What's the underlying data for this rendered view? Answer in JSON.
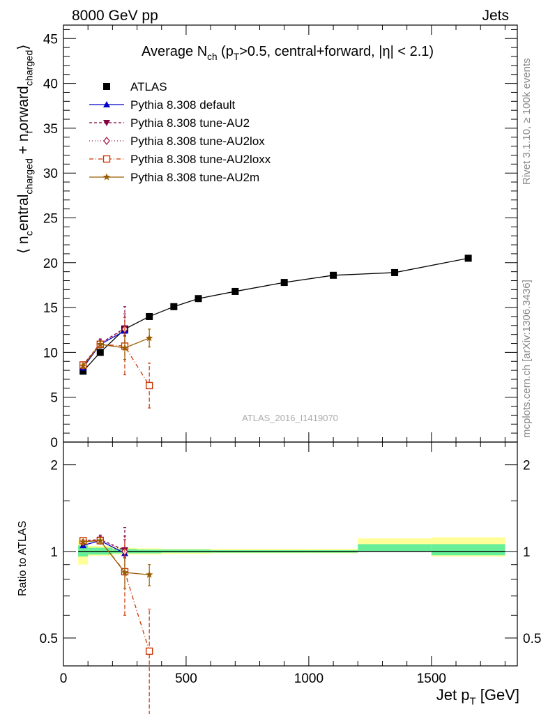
{
  "header": {
    "left": "8000 GeV pp",
    "right": "Jets"
  },
  "side_labels": {
    "rivet": "Rivet 3.1.10, ≥ 100k events",
    "mcplots": "mcplots.cern.ch [arXiv:1306.3436]"
  },
  "chart_data": [
    {
      "type": "scatter",
      "title_parts": [
        "Average N",
        "ch",
        " (p",
        "T",
        ">0.5, central+forward, |η| < 2.1)"
      ],
      "watermark": "ATLAS_2016_I1419070",
      "ylabel_parts": [
        "⟨ n",
        "c",
        "entral",
        "charged",
        " + n",
        "f",
        "orward",
        "charged",
        "⟩"
      ],
      "xlim": [
        0,
        1850
      ],
      "ylim": [
        0,
        46.5
      ],
      "yticks": [
        0,
        5,
        10,
        15,
        20,
        25,
        30,
        35,
        40,
        45
      ],
      "legend_position": "top-left",
      "series": [
        {
          "name": "ATLAS",
          "color": "#000000",
          "marker": "square",
          "x": [
            80,
            150,
            250,
            350,
            450,
            550,
            700,
            900,
            1100,
            1350,
            1650
          ],
          "y": [
            7.9,
            10.0,
            12.6,
            14.0,
            15.1,
            16.0,
            16.8,
            17.8,
            18.6,
            18.9,
            20.5
          ]
        },
        {
          "name": "Pythia 8.308 default",
          "color": "#0000cc",
          "marker": "triangle-up",
          "dash": "",
          "x": [
            80,
            150,
            250
          ],
          "y": [
            8.3,
            10.9,
            12.4
          ],
          "err_lo": [
            0.3,
            0.3,
            0.5
          ],
          "err_hi": [
            0.3,
            0.3,
            0.5
          ]
        },
        {
          "name": "Pythia 8.308 tune-AU2",
          "color": "#800040",
          "marker": "triangle-down",
          "dash": "4,3",
          "x": [
            80,
            150,
            250
          ],
          "y": [
            8.6,
            11.0,
            12.7
          ],
          "err_lo": [
            0.3,
            0.5,
            2.1
          ],
          "err_hi": [
            0.3,
            0.5,
            2.4
          ]
        },
        {
          "name": "Pythia 8.308 tune-AU2lox",
          "color": "#a01040",
          "marker": "diamond-open",
          "dash": "1,3",
          "x": [
            80,
            150,
            250
          ],
          "y": [
            8.5,
            11.0,
            12.6
          ],
          "err_lo": [
            0.3,
            0.4,
            1.7
          ],
          "err_hi": [
            0.3,
            0.4,
            1.7
          ]
        },
        {
          "name": "Pythia 8.308 tune-AU2loxx",
          "color": "#cc3300",
          "marker": "square-open",
          "dash": "6,3,1,3",
          "x": [
            80,
            150,
            250,
            350
          ],
          "y": [
            8.6,
            10.9,
            10.7,
            6.3
          ],
          "err_lo": [
            0.3,
            0.3,
            3.2,
            2.5
          ],
          "err_hi": [
            0.3,
            0.3,
            3.2,
            2.5
          ]
        },
        {
          "name": "Pythia 8.308 tune-AU2m",
          "color": "#995c00",
          "marker": "star",
          "dash": "",
          "x": [
            80,
            150,
            250,
            350
          ],
          "y": [
            8.5,
            10.9,
            10.5,
            11.6
          ],
          "err_lo": [
            0.3,
            0.4,
            1.3,
            1.0
          ],
          "err_hi": [
            0.3,
            0.4,
            1.3,
            1.0
          ]
        }
      ]
    },
    {
      "type": "scatter",
      "ylabel": "Ratio to ATLAS",
      "xlabel_parts": [
        "Jet p",
        "T",
        " [GeV]"
      ],
      "xlim": [
        0,
        1850
      ],
      "xticks": [
        0,
        500,
        1000,
        1500
      ],
      "ylim": [
        0.4,
        2.4
      ],
      "yscale": "log",
      "yticks": [
        0.5,
        1,
        2
      ],
      "reference": 1,
      "reference_color": "#000000",
      "bands": {
        "inner_color": "#66ee99",
        "outer_color": "#ffff99",
        "bins": [
          {
            "x": [
              60,
              100
            ],
            "inner": [
              0.96,
              1.05
            ],
            "outer": [
              0.9,
              1.1
            ]
          },
          {
            "x": [
              100,
              200
            ],
            "inner": [
              0.975,
              1.03
            ],
            "outer": [
              0.965,
              1.045
            ]
          },
          {
            "x": [
              200,
              300
            ],
            "inner": [
              0.985,
              1.02
            ],
            "outer": [
              0.975,
              1.03
            ]
          },
          {
            "x": [
              300,
              400
            ],
            "inner": [
              0.985,
              1.015
            ],
            "outer": [
              0.975,
              1.025
            ]
          },
          {
            "x": [
              400,
              500
            ],
            "inner": [
              0.99,
              1.015
            ],
            "outer": [
              0.98,
              1.02
            ]
          },
          {
            "x": [
              500,
              600
            ],
            "inner": [
              0.99,
              1.015
            ],
            "outer": [
              0.98,
              1.02
            ]
          },
          {
            "x": [
              600,
              800
            ],
            "inner": [
              0.99,
              1.01
            ],
            "outer": [
              0.985,
              1.02
            ]
          },
          {
            "x": [
              800,
              1000
            ],
            "inner": [
              0.99,
              1.01
            ],
            "outer": [
              0.985,
              1.02
            ]
          },
          {
            "x": [
              1000,
              1200
            ],
            "inner": [
              0.99,
              1.01
            ],
            "outer": [
              0.985,
              1.02
            ]
          },
          {
            "x": [
              1200,
              1500
            ],
            "inner": [
              1.0,
              1.06
            ],
            "outer": [
              1.0,
              1.11
            ]
          },
          {
            "x": [
              1500,
              1800
            ],
            "inner": [
              0.97,
              1.06
            ],
            "outer": [
              0.96,
              1.12
            ]
          }
        ]
      },
      "series": [
        {
          "name": "Pythia 8.308 default",
          "x": [
            80,
            150,
            250
          ],
          "y": [
            1.05,
            1.09,
            0.985
          ],
          "err_lo": [
            0.02,
            0.02,
            0.03
          ],
          "err_hi": [
            0.02,
            0.02,
            0.03
          ]
        },
        {
          "name": "Pythia 8.308 tune-AU2",
          "x": [
            80,
            150,
            250
          ],
          "y": [
            1.09,
            1.1,
            1.01
          ],
          "err_lo": [
            0.02,
            0.04,
            0.16
          ],
          "err_hi": [
            0.02,
            0.04,
            0.2
          ]
        },
        {
          "name": "Pythia 8.308 tune-AU2lox",
          "x": [
            80,
            150,
            250
          ],
          "y": [
            1.075,
            1.1,
            1.0
          ],
          "err_lo": [
            0.02,
            0.03,
            0.13
          ],
          "err_hi": [
            0.02,
            0.03,
            0.13
          ]
        },
        {
          "name": "Pythia 8.308 tune-AU2loxx",
          "x": [
            80,
            150,
            250,
            350
          ],
          "y": [
            1.09,
            1.09,
            0.85,
            0.45
          ],
          "err_lo": [
            0.02,
            0.03,
            0.25,
            0.18
          ],
          "err_hi": [
            0.02,
            0.03,
            0.25,
            0.18
          ]
        },
        {
          "name": "Pythia 8.308 tune-AU2m",
          "x": [
            80,
            150,
            250,
            350
          ],
          "y": [
            1.08,
            1.09,
            0.845,
            0.83
          ],
          "err_lo": [
            0.02,
            0.03,
            0.1,
            0.07
          ],
          "err_hi": [
            0.02,
            0.03,
            0.1,
            0.07
          ]
        }
      ]
    }
  ]
}
